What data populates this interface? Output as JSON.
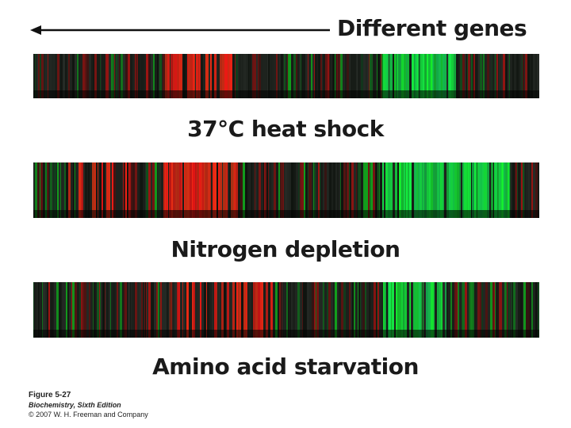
{
  "header": {
    "label": "Different genes"
  },
  "conditions": [
    {
      "label": "37°C heat shock"
    },
    {
      "label": "Nitrogen depletion"
    },
    {
      "label": "Amino acid starvation"
    }
  ],
  "colors": {
    "induced": "#e0261e",
    "repressed": "#25c24a",
    "background": "#111111",
    "text": "#1a1a1a"
  },
  "caption": {
    "figure": "Figure 5-27",
    "book": "Biochemistry, Sixth Edition",
    "copyright": "© 2007 W. H. Freeman and Company"
  }
}
